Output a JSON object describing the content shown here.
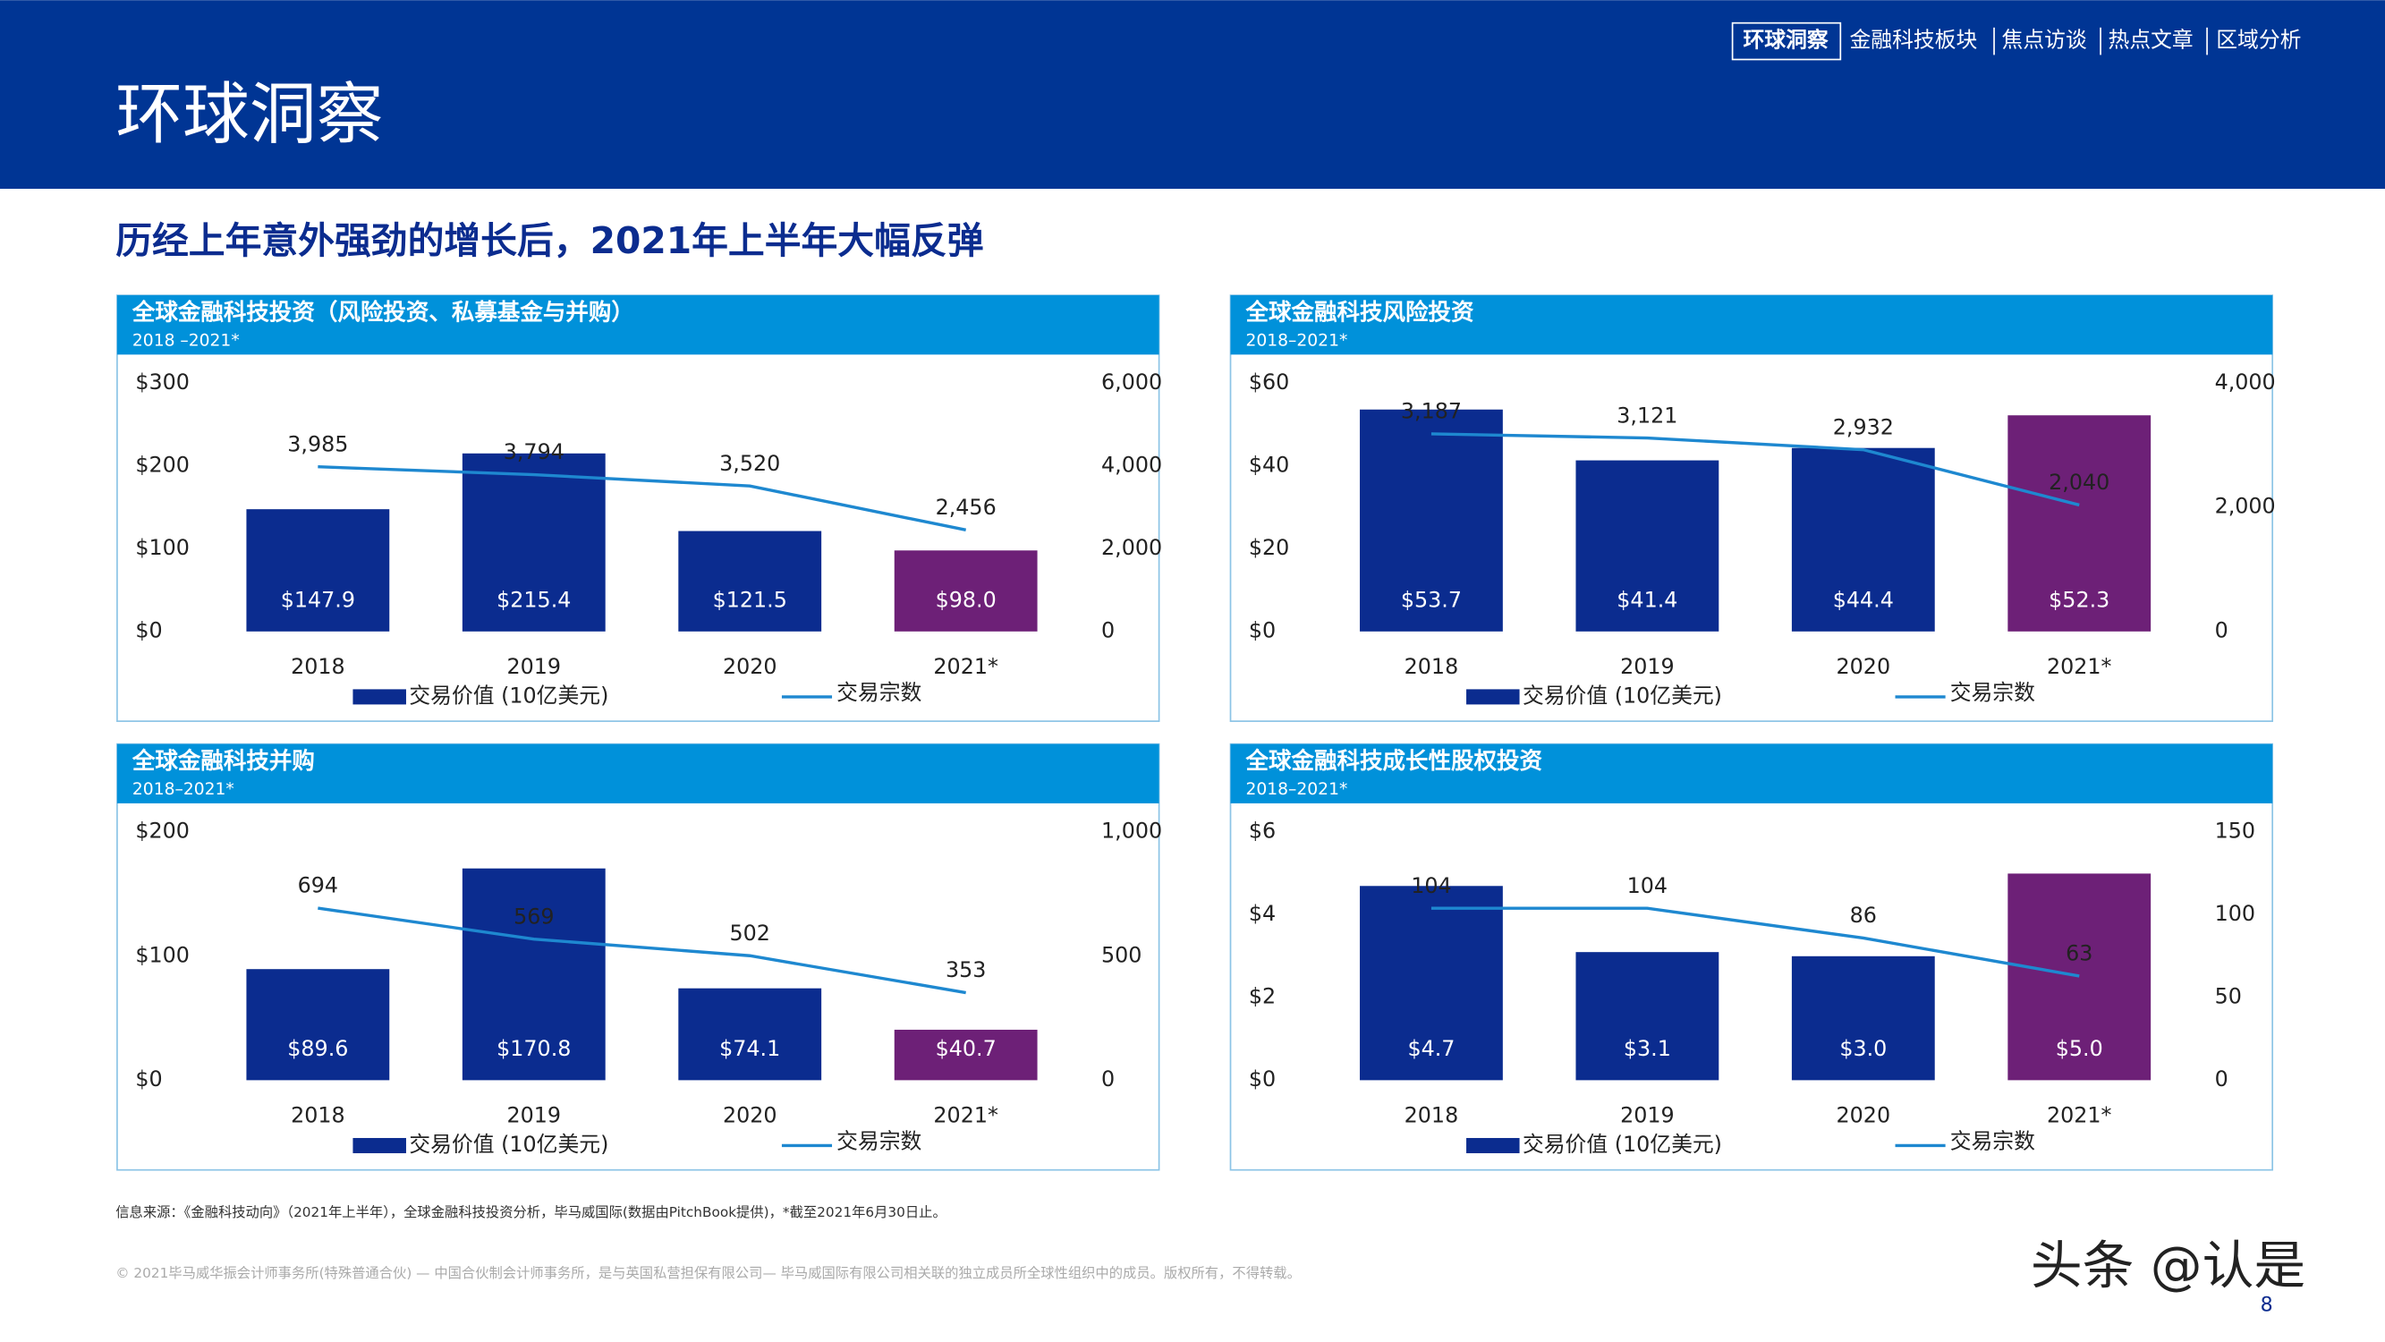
{
  "header": {
    "title": "环球洞察",
    "nav": [
      "环球洞察",
      "金融科技板块",
      "焦点访谈",
      "热点文章",
      "区域分析"
    ]
  },
  "headline": "历经上年意外强劲的增长后，2021年上半年大幅反弹",
  "chart_data": [
    {
      "type": "combo",
      "title": "全球金融科技投资（风险投资、私募基金与并购）",
      "subtitle": "2018 –2021*",
      "categories": [
        "2018",
        "2019",
        "2020",
        "2021*"
      ],
      "series": [
        {
          "name": "交易价值 (10亿美元)",
          "kind": "bar",
          "color": "#0b2c8f",
          "colors": [
            "#0b2c8f",
            "#0b2c8f",
            "#0b2c8f",
            "#6d2077"
          ],
          "values": [
            147.9,
            215.4,
            121.5,
            98.0
          ],
          "value_labels": [
            "$147.9",
            "$215.4",
            "$121.5",
            "$98.0"
          ]
        },
        {
          "name": "交易宗数",
          "kind": "line",
          "axis": "y2",
          "color": "#1e88d0",
          "values": [
            3985,
            3794,
            3520,
            2456
          ],
          "value_labels": [
            "3,985",
            "3,794",
            "3,520",
            "2,456"
          ]
        }
      ],
      "ylim": [
        0,
        300
      ],
      "yticks": [
        {
          "value": 0,
          "label": "$0"
        },
        {
          "value": 100,
          "label": "$100"
        },
        {
          "value": 200,
          "label": "$200"
        },
        {
          "value": 300,
          "label": "$300"
        }
      ],
      "y2lim": [
        0,
        6000
      ],
      "y2ticks": [
        0,
        {
          "value": 2000,
          "label": "2,000"
        },
        {
          "value": 4000,
          "label": "4,000"
        },
        {
          "value": 6000,
          "label": "6,000"
        }
      ]
    },
    {
      "type": "combo",
      "title": "全球金融科技风险投资",
      "subtitle": "2018–2021*",
      "categories": [
        "2018",
        "2019",
        "2020",
        "2021*"
      ],
      "series": [
        {
          "name": "交易价值 (10亿美元)",
          "kind": "bar",
          "color": "#0b2c8f",
          "colors": [
            "#0b2c8f",
            "#0b2c8f",
            "#0b2c8f",
            "#6d2077"
          ],
          "values": [
            53.7,
            41.4,
            44.4,
            52.3
          ],
          "value_labels": [
            "$53.7",
            "$41.4",
            "$44.4",
            "$52.3"
          ]
        },
        {
          "name": "交易宗数",
          "kind": "line",
          "axis": "y2",
          "color": "#1e88d0",
          "values": [
            3187,
            3121,
            2932,
            2040
          ],
          "value_labels": [
            "3,187",
            "3,121",
            "2,932",
            "2,040"
          ]
        }
      ],
      "ylim": [
        0,
        60
      ],
      "yticks": [
        {
          "value": 0,
          "label": "$0"
        },
        {
          "value": 20,
          "label": "$20"
        },
        {
          "value": 40,
          "label": "$40"
        },
        {
          "value": 60,
          "label": "$60"
        }
      ],
      "y2lim": [
        0,
        4000
      ],
      "y2ticks": [
        0,
        {
          "value": 2000,
          "label": "2,000"
        },
        {
          "value": 4000,
          "label": "4,000"
        }
      ]
    },
    {
      "type": "combo",
      "title": "全球金融科技并购",
      "subtitle": "2018–2021*",
      "categories": [
        "2018",
        "2019",
        "2020",
        "2021*"
      ],
      "series": [
        {
          "name": "交易价值 (10亿美元)",
          "kind": "bar",
          "color": "#0b2c8f",
          "colors": [
            "#0b2c8f",
            "#0b2c8f",
            "#0b2c8f",
            "#6d2077"
          ],
          "values": [
            89.6,
            170.8,
            74.1,
            40.7
          ],
          "value_labels": [
            "$89.6",
            "$170.8",
            "$74.1",
            "$40.7"
          ]
        },
        {
          "name": "交易宗数",
          "kind": "line",
          "axis": "y2",
          "color": "#1e88d0",
          "values": [
            694,
            569,
            502,
            353
          ]
        }
      ],
      "ylim": [
        0,
        200
      ],
      "yticks": [
        {
          "value": 0,
          "label": "$0"
        },
        {
          "value": 100,
          "label": "$100"
        },
        {
          "value": 200,
          "label": "$200"
        }
      ],
      "y2lim": [
        0,
        1000
      ],
      "y2ticks": [
        0,
        500,
        {
          "value": 1000,
          "label": "1,000"
        }
      ]
    },
    {
      "type": "combo",
      "title": "全球金融科技成长性股权投资",
      "subtitle": "2018–2021*",
      "categories": [
        "2018",
        "2019",
        "2020",
        "2021*"
      ],
      "series": [
        {
          "name": "交易价值 (10亿美元)",
          "kind": "bar",
          "color": "#0b2c8f",
          "colors": [
            "#0b2c8f",
            "#0b2c8f",
            "#0b2c8f",
            "#6d2077"
          ],
          "values": [
            4.7,
            3.1,
            3.0,
            5.0
          ],
          "value_labels": [
            "$4.7",
            "$3.1",
            "$3.0",
            "$5.0"
          ]
        },
        {
          "name": "交易宗数",
          "kind": "line",
          "axis": "y2",
          "color": "#1e88d0",
          "values": [
            104,
            104,
            86,
            63
          ]
        }
      ],
      "ylim": [
        0,
        6
      ],
      "yticks": [
        {
          "value": 0,
          "label": "$0"
        },
        {
          "value": 2,
          "label": "$2"
        },
        {
          "value": 4,
          "label": "$4"
        },
        {
          "value": 6,
          "label": "$6"
        }
      ],
      "y2lim": [
        0,
        150
      ],
      "y2ticks": [
        0,
        50,
        100,
        150
      ]
    }
  ],
  "footnote": "信息来源：《金融科技动向》（2021年上半年），全球金融科技投资分析，毕马威国际(数据由PitchBook提供)，*截至2021年6月30日止。",
  "copyright": "© 2021毕马威华振会计师事务所(特殊普通合伙) — 中国合伙制会计师事务所，是与英国私营担保有限公司— 毕马威国际有限公司相关联的独立成员所全球性组织中的成员。版权所有，不得转载。",
  "watermark": "头条 @认是",
  "page_number": "8"
}
